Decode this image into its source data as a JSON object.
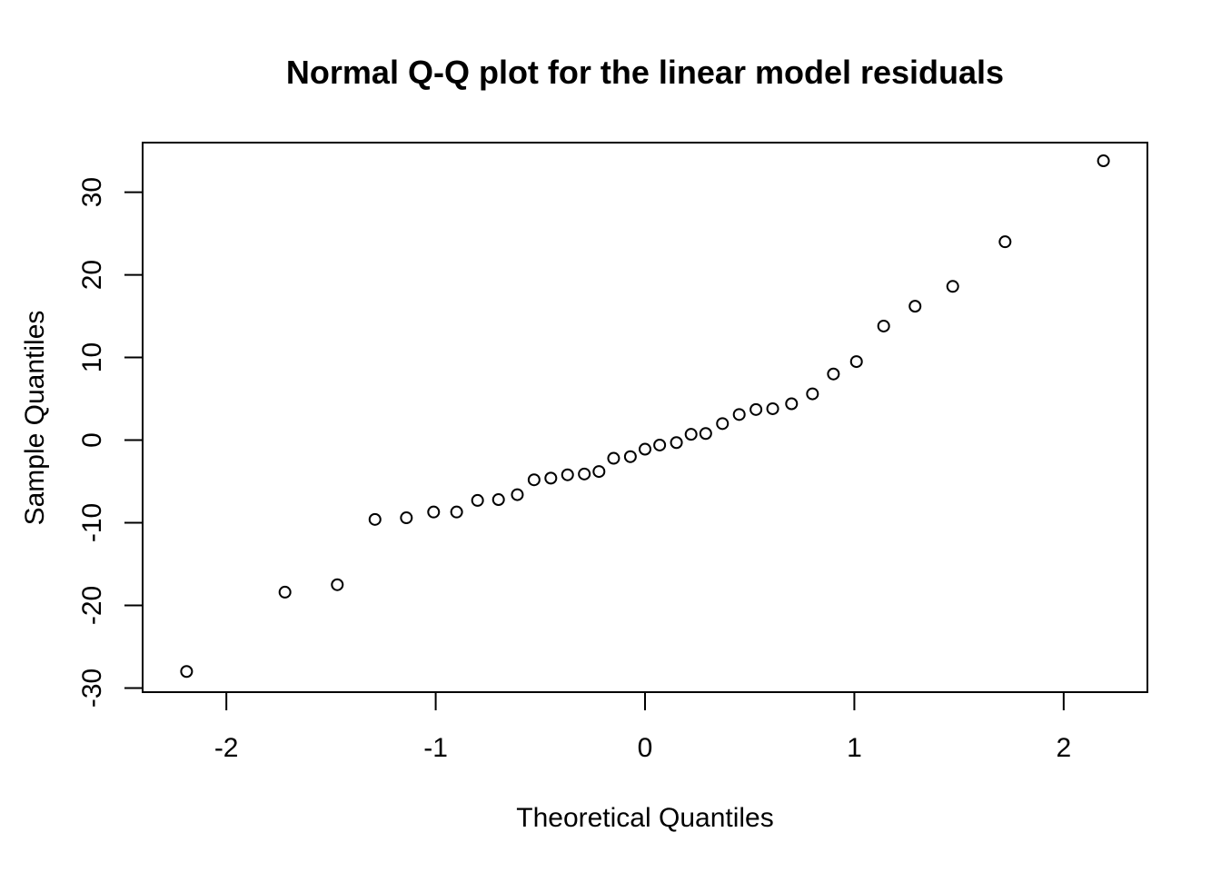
{
  "chart_data": {
    "type": "scatter",
    "title": "Normal Q-Q plot for the linear model residuals",
    "xlabel": "Theoretical Quantiles",
    "ylabel": "Sample Quantiles",
    "xlim": [
      -2.4,
      2.4
    ],
    "ylim": [
      -30.5,
      36
    ],
    "xticks": [
      -2,
      -1,
      0,
      1,
      2
    ],
    "yticks": [
      -30,
      -20,
      -10,
      0,
      10,
      20,
      30
    ],
    "grid": false,
    "points": [
      {
        "x": -2.19,
        "y": -28.0
      },
      {
        "x": -1.72,
        "y": -18.4
      },
      {
        "x": -1.47,
        "y": -17.5
      },
      {
        "x": -1.29,
        "y": -9.6
      },
      {
        "x": -1.14,
        "y": -9.4
      },
      {
        "x": -1.01,
        "y": -8.7
      },
      {
        "x": -0.9,
        "y": -8.7
      },
      {
        "x": -0.8,
        "y": -7.3
      },
      {
        "x": -0.7,
        "y": -7.2
      },
      {
        "x": -0.61,
        "y": -6.6
      },
      {
        "x": -0.53,
        "y": -4.8
      },
      {
        "x": -0.45,
        "y": -4.6
      },
      {
        "x": -0.37,
        "y": -4.2
      },
      {
        "x": -0.29,
        "y": -4.1
      },
      {
        "x": -0.22,
        "y": -3.8
      },
      {
        "x": -0.15,
        "y": -2.2
      },
      {
        "x": -0.07,
        "y": -2.0
      },
      {
        "x": 0.0,
        "y": -1.1
      },
      {
        "x": 0.07,
        "y": -0.6
      },
      {
        "x": 0.15,
        "y": -0.3
      },
      {
        "x": 0.22,
        "y": 0.7
      },
      {
        "x": 0.29,
        "y": 0.8
      },
      {
        "x": 0.37,
        "y": 2.0
      },
      {
        "x": 0.45,
        "y": 3.1
      },
      {
        "x": 0.53,
        "y": 3.7
      },
      {
        "x": 0.61,
        "y": 3.8
      },
      {
        "x": 0.7,
        "y": 4.4
      },
      {
        "x": 0.8,
        "y": 5.6
      },
      {
        "x": 0.9,
        "y": 8.0
      },
      {
        "x": 1.01,
        "y": 9.5
      },
      {
        "x": 1.14,
        "y": 13.8
      },
      {
        "x": 1.29,
        "y": 16.2
      },
      {
        "x": 1.47,
        "y": 18.6
      },
      {
        "x": 1.72,
        "y": 24.0
      },
      {
        "x": 2.19,
        "y": 33.8
      }
    ]
  }
}
